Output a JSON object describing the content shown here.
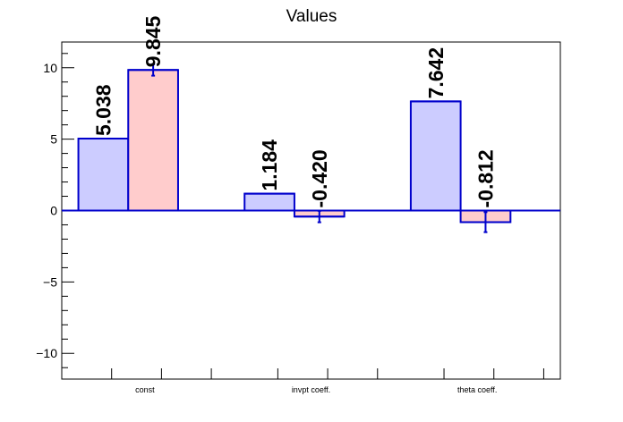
{
  "chart_data": {
    "type": "bar",
    "title": "Values",
    "xlabel": "",
    "ylabel": "",
    "categories": [
      "const",
      "invpt coeff.",
      "theta coeff."
    ],
    "ylim": [
      -11.8,
      11.8
    ],
    "yticks": [
      -10,
      -5,
      0,
      5,
      10
    ],
    "ytick_labels": [
      "−10",
      "−5",
      "0",
      "5",
      "10"
    ],
    "grid": false,
    "series": [
      {
        "values": [
          5.038,
          1.184,
          7.642
        ],
        "errors": [
          0,
          0,
          0
        ],
        "labels": [
          "5.038",
          "1.184",
          "7.642"
        ],
        "fill": "#ccccff",
        "stroke": "#0000cc"
      },
      {
        "values": [
          9.845,
          -0.42,
          -0.812
        ],
        "errors": [
          0.4,
          0.4,
          0.7
        ],
        "labels": [
          "9.845",
          "-0.420",
          "-0.812"
        ],
        "fill": "#ffcccc",
        "stroke": "#0000cc"
      }
    ]
  }
}
